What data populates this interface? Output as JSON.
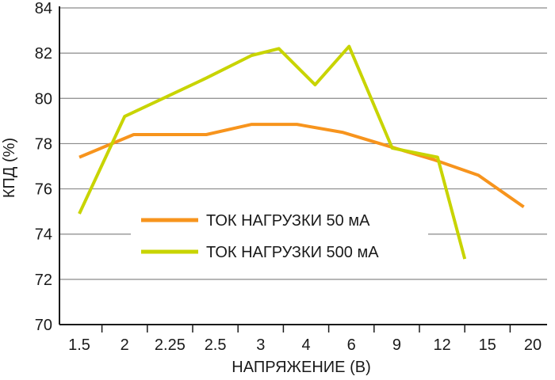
{
  "chart_data": {
    "type": "line",
    "xlabel_main": "НАПРЯЖЕНИЕ",
    "xlabel_unit": " (В)",
    "ylabel_main": "КПД",
    "ylabel_unit": " (%)",
    "categories": [
      "1.5",
      "2",
      "2.25",
      "2.5",
      "3",
      "4",
      "6",
      "9",
      "12",
      "15",
      "20"
    ],
    "ylim": [
      70,
      84
    ],
    "yticks": [
      70,
      72,
      74,
      76,
      78,
      80,
      82,
      84
    ],
    "grid": "horizontal",
    "legend_placement": "center",
    "series": [
      {
        "name": "ТОК НАГРУЗКИ 50 мА",
        "color": "#f7941d",
        "points": [
          [
            0,
            77.4
          ],
          [
            1.2,
            78.4
          ],
          [
            2.8,
            78.4
          ],
          [
            3.8,
            78.85
          ],
          [
            4.8,
            78.85
          ],
          [
            5.8,
            78.5
          ],
          [
            6.8,
            77.9
          ],
          [
            7.8,
            77.3
          ],
          [
            8.8,
            76.6
          ],
          [
            9.8,
            75.2
          ]
        ]
      },
      {
        "name": "ТОК НАГРУЗКИ 500 мА",
        "color": "#c8d400",
        "points": [
          [
            0,
            74.9
          ],
          [
            1.0,
            79.2
          ],
          [
            2.8,
            80.9
          ],
          [
            3.8,
            81.9
          ],
          [
            4.4,
            82.2
          ],
          [
            5.2,
            80.6
          ],
          [
            5.95,
            82.3
          ],
          [
            6.9,
            77.8
          ],
          [
            7.9,
            77.4
          ],
          [
            8.5,
            72.9
          ]
        ]
      }
    ]
  }
}
